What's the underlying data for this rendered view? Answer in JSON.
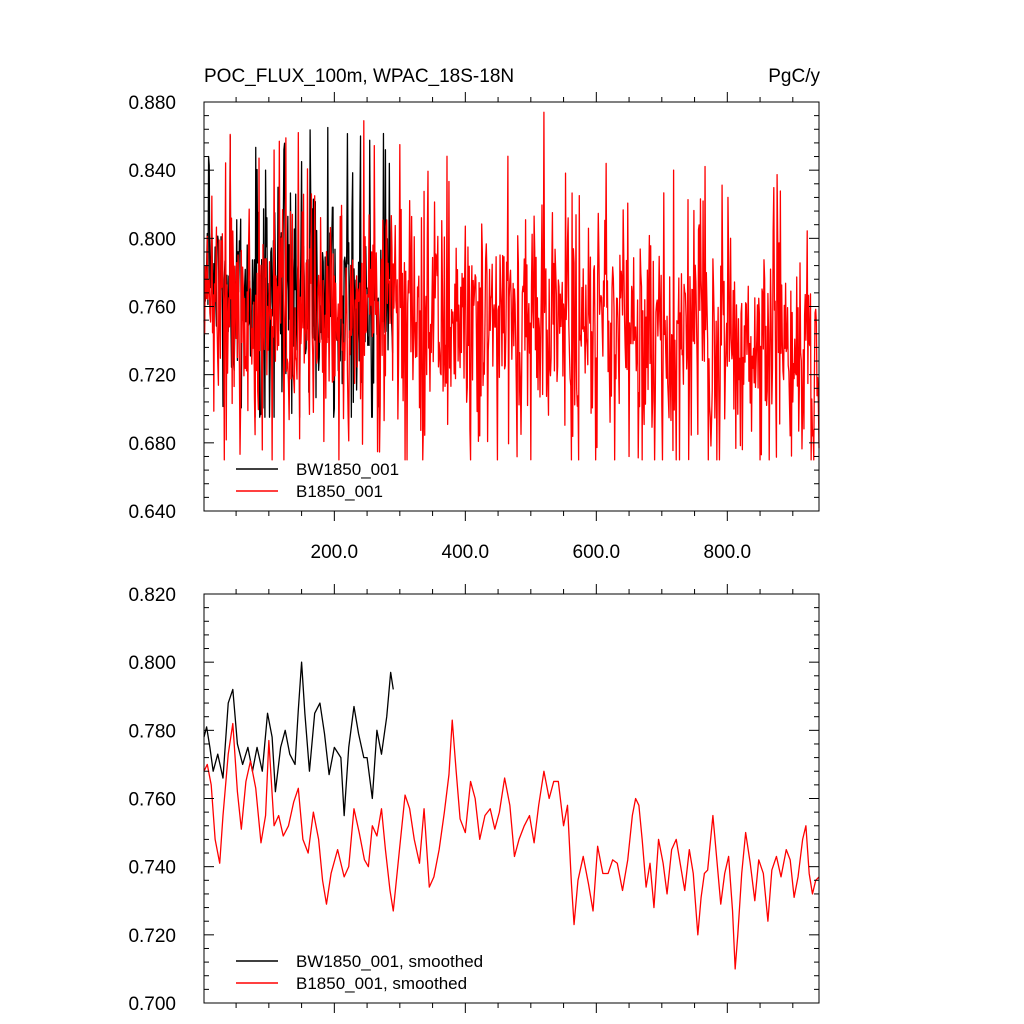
{
  "chart_data": [
    {
      "type": "line",
      "title": "POC_FLUX_100m, WPAC_18S-18N",
      "units": "PgC/y",
      "xlim": [
        1,
        940
      ],
      "ylim": [
        0.64,
        0.88
      ],
      "x_ticks": [
        200,
        400,
        600,
        800
      ],
      "x_tick_labels": [
        "200.0",
        "400.0",
        "600.0",
        "800.0"
      ],
      "y_ticks": [
        0.64,
        0.68,
        0.72,
        0.76,
        0.8,
        0.84,
        0.88
      ],
      "y_tick_labels": [
        "0.640",
        "0.680",
        "0.720",
        "0.760",
        "0.800",
        "0.840",
        "0.880"
      ],
      "grid": false,
      "legend_position": "bottom-left",
      "series": [
        {
          "name": "BW1850_001",
          "color": "#000000",
          "x_range": [
            1,
            290
          ],
          "mean": 0.768,
          "min": 0.695,
          "max": 0.865,
          "amplitude": 0.03,
          "spike_points": [
            [
              8,
              0.848
            ],
            [
              95,
              0.84
            ],
            [
              123,
              0.852
            ],
            [
              150,
              0.845
            ],
            [
              190,
              0.865
            ],
            [
              240,
              0.86
            ],
            [
              278,
              0.852
            ],
            [
              284,
              0.844
            ],
            [
              120,
              0.71
            ],
            [
              200,
              0.7
            ]
          ]
        },
        {
          "name": "B1850_001",
          "color": "#ff0000",
          "x_range": [
            1,
            940
          ],
          "mean_points": [
            [
              1,
              0.76
            ],
            [
              290,
              0.755
            ],
            [
              500,
              0.748
            ],
            [
              700,
              0.742
            ],
            [
              940,
              0.738
            ]
          ],
          "min": 0.67,
          "max": 0.874,
          "amplitude": 0.032,
          "spike_points": [
            [
              145,
              0.862
            ],
            [
              245,
              0.869
            ],
            [
              300,
              0.855
            ],
            [
              520,
              0.874
            ],
            [
              562,
              0.67
            ],
            [
              650,
              0.672
            ],
            [
              718,
              0.84
            ],
            [
              805,
              0.8
            ],
            [
              485,
              0.685
            ],
            [
              755,
              0.685
            ]
          ]
        }
      ]
    },
    {
      "type": "line",
      "title": "",
      "xlim": [
        1,
        940
      ],
      "ylim": [
        0.7,
        0.82
      ],
      "x_ticks": [
        200,
        400,
        600,
        800
      ],
      "x_tick_labels": [],
      "y_ticks": [
        0.7,
        0.72,
        0.74,
        0.76,
        0.78,
        0.8,
        0.82
      ],
      "y_tick_labels": [
        "0.700",
        "0.720",
        "0.740",
        "0.760",
        "0.780",
        "0.800",
        "0.820"
      ],
      "grid": false,
      "legend_position": "bottom-left",
      "series": [
        {
          "name": "BW1850_001, smoothed",
          "color": "#000000",
          "points": [
            [
              1,
              0.778
            ],
            [
              5,
              0.781
            ],
            [
              10,
              0.775
            ],
            [
              15,
              0.768
            ],
            [
              22,
              0.773
            ],
            [
              30,
              0.766
            ],
            [
              38,
              0.788
            ],
            [
              45,
              0.792
            ],
            [
              52,
              0.776
            ],
            [
              60,
              0.77
            ],
            [
              68,
              0.775
            ],
            [
              75,
              0.768
            ],
            [
              82,
              0.775
            ],
            [
              90,
              0.768
            ],
            [
              98,
              0.785
            ],
            [
              105,
              0.778
            ],
            [
              110,
              0.762
            ],
            [
              118,
              0.775
            ],
            [
              125,
              0.78
            ],
            [
              132,
              0.773
            ],
            [
              140,
              0.77
            ],
            [
              145,
              0.786
            ],
            [
              150,
              0.8
            ],
            [
              155,
              0.785
            ],
            [
              162,
              0.768
            ],
            [
              170,
              0.785
            ],
            [
              178,
              0.788
            ],
            [
              185,
              0.779
            ],
            [
              192,
              0.767
            ],
            [
              200,
              0.775
            ],
            [
              210,
              0.772
            ],
            [
              215,
              0.755
            ],
            [
              222,
              0.775
            ],
            [
              230,
              0.787
            ],
            [
              237,
              0.779
            ],
            [
              245,
              0.772
            ],
            [
              250,
              0.772
            ],
            [
              258,
              0.76
            ],
            [
              265,
              0.78
            ],
            [
              272,
              0.773
            ],
            [
              280,
              0.784
            ],
            [
              286,
              0.797
            ],
            [
              290,
              0.792
            ]
          ]
        },
        {
          "name": "B1850_001, smoothed",
          "color": "#ff0000",
          "points": [
            [
              1,
              0.768
            ],
            [
              6,
              0.77
            ],
            [
              12,
              0.764
            ],
            [
              18,
              0.748
            ],
            [
              25,
              0.741
            ],
            [
              30,
              0.755
            ],
            [
              38,
              0.773
            ],
            [
              45,
              0.782
            ],
            [
              52,
              0.762
            ],
            [
              58,
              0.751
            ],
            [
              65,
              0.765
            ],
            [
              72,
              0.771
            ],
            [
              80,
              0.763
            ],
            [
              88,
              0.747
            ],
            [
              95,
              0.755
            ],
            [
              100,
              0.777
            ],
            [
              108,
              0.752
            ],
            [
              115,
              0.755
            ],
            [
              122,
              0.749
            ],
            [
              130,
              0.752
            ],
            [
              138,
              0.759
            ],
            [
              145,
              0.763
            ],
            [
              152,
              0.748
            ],
            [
              160,
              0.744
            ],
            [
              168,
              0.756
            ],
            [
              176,
              0.748
            ],
            [
              182,
              0.736
            ],
            [
              188,
              0.729
            ],
            [
              195,
              0.738
            ],
            [
              205,
              0.745
            ],
            [
              215,
              0.737
            ],
            [
              222,
              0.74
            ],
            [
              230,
              0.757
            ],
            [
              238,
              0.75
            ],
            [
              246,
              0.742
            ],
            [
              252,
              0.74
            ],
            [
              258,
              0.752
            ],
            [
              265,
              0.749
            ],
            [
              272,
              0.757
            ],
            [
              278,
              0.745
            ],
            [
              285,
              0.733
            ],
            [
              290,
              0.727
            ],
            [
              300,
              0.746
            ],
            [
              308,
              0.761
            ],
            [
              315,
              0.757
            ],
            [
              322,
              0.748
            ],
            [
              330,
              0.741
            ],
            [
              337,
              0.757
            ],
            [
              345,
              0.734
            ],
            [
              352,
              0.737
            ],
            [
              360,
              0.745
            ],
            [
              368,
              0.756
            ],
            [
              375,
              0.767
            ],
            [
              380,
              0.783
            ],
            [
              386,
              0.768
            ],
            [
              392,
              0.754
            ],
            [
              400,
              0.75
            ],
            [
              408,
              0.765
            ],
            [
              415,
              0.76
            ],
            [
              422,
              0.748
            ],
            [
              430,
              0.755
            ],
            [
              438,
              0.757
            ],
            [
              445,
              0.751
            ],
            [
              452,
              0.756
            ],
            [
              460,
              0.766
            ],
            [
              468,
              0.758
            ],
            [
              475,
              0.743
            ],
            [
              482,
              0.748
            ],
            [
              490,
              0.752
            ],
            [
              498,
              0.755
            ],
            [
              505,
              0.747
            ],
            [
              512,
              0.758
            ],
            [
              520,
              0.768
            ],
            [
              528,
              0.76
            ],
            [
              535,
              0.765
            ],
            [
              542,
              0.765
            ],
            [
              550,
              0.752
            ],
            [
              556,
              0.758
            ],
            [
              562,
              0.735
            ],
            [
              566,
              0.723
            ],
            [
              572,
              0.736
            ],
            [
              580,
              0.743
            ],
            [
              588,
              0.735
            ],
            [
              595,
              0.727
            ],
            [
              602,
              0.746
            ],
            [
              610,
              0.738
            ],
            [
              618,
              0.738
            ],
            [
              625,
              0.742
            ],
            [
              632,
              0.741
            ],
            [
              640,
              0.733
            ],
            [
              648,
              0.742
            ],
            [
              655,
              0.755
            ],
            [
              660,
              0.76
            ],
            [
              665,
              0.758
            ],
            [
              670,
              0.748
            ],
            [
              676,
              0.734
            ],
            [
              682,
              0.741
            ],
            [
              688,
              0.728
            ],
            [
              695,
              0.748
            ],
            [
              702,
              0.741
            ],
            [
              708,
              0.732
            ],
            [
              715,
              0.745
            ],
            [
              722,
              0.748
            ],
            [
              728,
              0.741
            ],
            [
              735,
              0.733
            ],
            [
              742,
              0.745
            ],
            [
              748,
              0.738
            ],
            [
              755,
              0.72
            ],
            [
              760,
              0.731
            ],
            [
              765,
              0.738
            ],
            [
              770,
              0.739
            ],
            [
              778,
              0.755
            ],
            [
              784,
              0.742
            ],
            [
              790,
              0.729
            ],
            [
              796,
              0.738
            ],
            [
              802,
              0.743
            ],
            [
              808,
              0.727
            ],
            [
              812,
              0.71
            ],
            [
              816,
              0.72
            ],
            [
              822,
              0.738
            ],
            [
              828,
              0.75
            ],
            [
              835,
              0.741
            ],
            [
              842,
              0.73
            ],
            [
              848,
              0.742
            ],
            [
              855,
              0.738
            ],
            [
              862,
              0.724
            ],
            [
              868,
              0.739
            ],
            [
              875,
              0.743
            ],
            [
              882,
              0.737
            ],
            [
              890,
              0.745
            ],
            [
              896,
              0.742
            ],
            [
              902,
              0.731
            ],
            [
              908,
              0.737
            ],
            [
              915,
              0.748
            ],
            [
              920,
              0.752
            ],
            [
              925,
              0.738
            ],
            [
              930,
              0.732
            ],
            [
              935,
              0.736
            ],
            [
              940,
              0.737
            ]
          ]
        }
      ]
    }
  ]
}
